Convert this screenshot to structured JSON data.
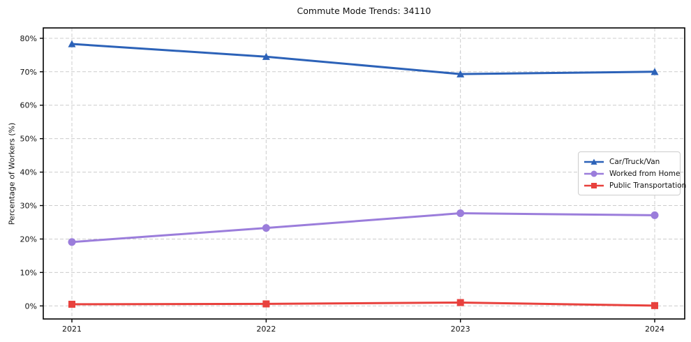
{
  "title": "Commute Mode Trends: 34110",
  "chart_data": {
    "type": "line",
    "categories": [
      "2021",
      "2022",
      "2023",
      "2024"
    ],
    "series": [
      {
        "name": "Car/Truck/Van",
        "values": [
          78.3,
          74.5,
          69.3,
          70.0
        ],
        "color": "#2c62b8",
        "marker": "triangle"
      },
      {
        "name": "Worked from Home",
        "values": [
          19.1,
          23.3,
          27.7,
          27.1
        ],
        "color": "#9b7ddb",
        "marker": "circle"
      },
      {
        "name": "Public Transportation",
        "values": [
          0.5,
          0.6,
          1.0,
          0.1
        ],
        "color": "#e8413d",
        "marker": "square"
      }
    ],
    "title": "Commute Mode Trends: 34110",
    "xlabel": "",
    "ylabel": "Percentage of Workers (%)",
    "yticks": [
      0,
      10,
      20,
      30,
      40,
      50,
      60,
      70,
      80
    ],
    "ytick_labels": [
      "0%",
      "10%",
      "20%",
      "30%",
      "40%",
      "50%",
      "60%",
      "70%",
      "80%"
    ],
    "ylim": [
      -3.9,
      83.1
    ],
    "grid": true,
    "grid_color": "#cccccc",
    "axis_color": "#000000",
    "legend_position": "center right"
  }
}
